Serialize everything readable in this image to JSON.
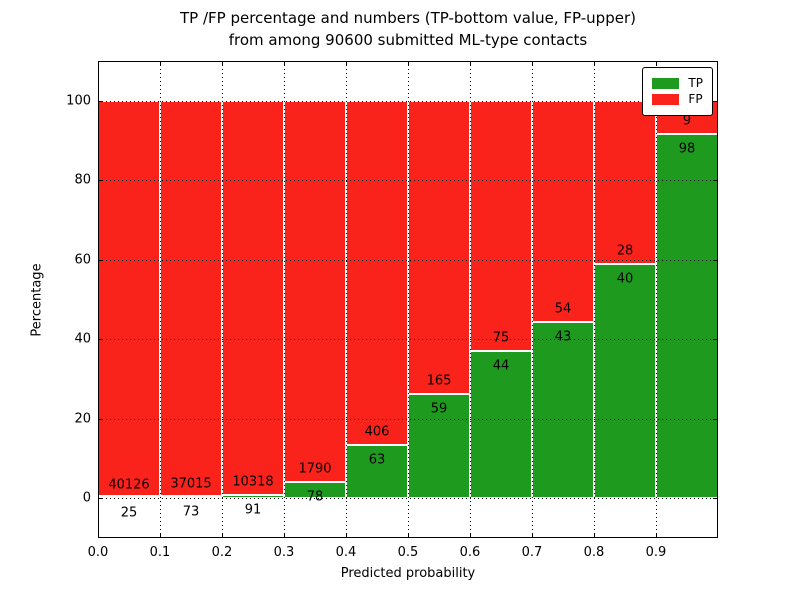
{
  "title": {
    "line1": "TP /FP percentage and numbers (TP-bottom value, FP-upper)",
    "line2": "from among 90600 submitted ML-type contacts"
  },
  "axes": {
    "xlabel": "Predicted probability",
    "ylabel": "Percentage",
    "xtick_labels": [
      "0.0",
      "0.1",
      "0.2",
      "0.3",
      "0.4",
      "0.5",
      "0.6",
      "0.7",
      "0.8",
      "0.9"
    ],
    "ytick_labels": [
      "0",
      "20",
      "40",
      "60",
      "80",
      "100"
    ]
  },
  "legend": {
    "items": [
      {
        "label": "TP",
        "color": "#1e9b1e"
      },
      {
        "label": "FP",
        "color": "#fa231c"
      }
    ]
  },
  "colors": {
    "tp_green": "#1e9b1e",
    "fp_red": "#fa231c",
    "bar_edge": "#ffffff",
    "grid": "#000000",
    "text": "#000000",
    "background": "#ffffff"
  },
  "chart_data": {
    "type": "bar",
    "stacked": true,
    "normalized_to_percent": true,
    "title": "TP /FP percentage and numbers (TP-bottom value, FP-upper)\nfrom among 90600 submitted ML-type contacts",
    "xlabel": "Predicted probability",
    "ylabel": "Percentage",
    "xlim": [
      0.0,
      1.0
    ],
    "ylim": [
      -10,
      110
    ],
    "xticks": [
      0.0,
      0.1,
      0.2,
      0.3,
      0.4,
      0.5,
      0.6,
      0.7,
      0.8,
      0.9
    ],
    "yticks": [
      0,
      20,
      40,
      60,
      80,
      100
    ],
    "grid": true,
    "legend_position": "upper right",
    "bin_width": 0.1,
    "bin_start": [
      0.0,
      0.1,
      0.2,
      0.3,
      0.4,
      0.5,
      0.6,
      0.7,
      0.8,
      0.9
    ],
    "series": [
      {
        "name": "TP",
        "color": "#1e9b1e",
        "position": "bottom",
        "counts": [
          25,
          73,
          91,
          78,
          63,
          59,
          44,
          43,
          40,
          98
        ]
      },
      {
        "name": "FP",
        "color": "#fa231c",
        "position": "top",
        "counts": [
          40126,
          37015,
          10318,
          1790,
          406,
          165,
          75,
          54,
          28,
          9
        ]
      }
    ]
  }
}
